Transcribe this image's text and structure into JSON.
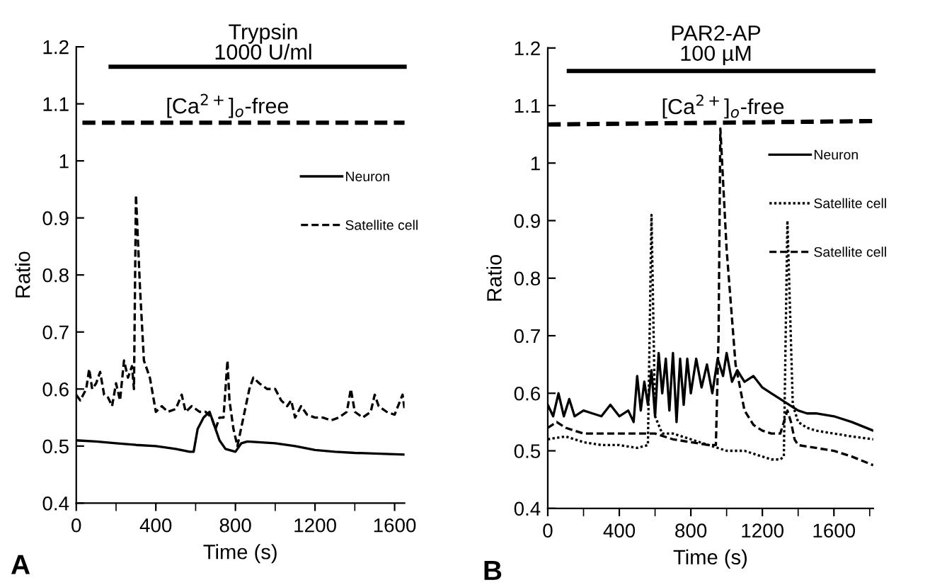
{
  "chart_data": [
    {
      "type": "line",
      "xlabel": "Time (s)",
      "ylabel": "Ratio",
      "legend": "right",
      "grid": false,
      "marker": "none",
      "xlim": [
        0,
        1650
      ],
      "xticks": [
        0,
        {
          "value": 200,
          "label": null
        },
        400,
        {
          "value": 600,
          "label": null
        },
        800,
        {
          "value": 1000,
          "label": null
        },
        1200,
        {
          "value": 1400,
          "label": null
        },
        1600
      ],
      "ylim": [
        0.4,
        1.2
      ],
      "yticks": [
        0.4,
        0.5,
        0.6,
        0.7,
        0.8,
        0.9,
        1,
        1.1,
        1.2
      ],
      "annotations": [
        {
          "text": "Trypsin\n1000 U/ml",
          "x": 940,
          "y": 1.17
        },
        {
          "text": "[Ca$^{2+}$]$_{o}$-free",
          "x": 760,
          "y": 1.075
        },
        "A"
      ],
      "series": [
        {
          "color": "#000000",
          "line_style": "solid",
          "x": [
            173,
            1650
          ],
          "values": [
            1.165,
            1.165
          ]
        },
        {
          "color": "#000000",
          "line_style": "dashed",
          "x": [
            31,
            1650
          ],
          "values": [
            1.067,
            1.067
          ]
        },
        {
          "name": "Neuron",
          "color": "#000000",
          "line_style": "solid",
          "x": [
            0,
            100,
            200,
            300,
            400,
            500,
            570,
            590,
            610,
            640,
            670,
            700,
            720,
            750,
            800,
            830,
            860,
            1000,
            1100,
            1200,
            1300,
            1400,
            1500,
            1650
          ],
          "values": [
            0.51,
            0.508,
            0.505,
            0.502,
            0.5,
            0.495,
            0.49,
            0.49,
            0.53,
            0.55,
            0.56,
            0.53,
            0.51,
            0.495,
            0.49,
            0.505,
            0.508,
            0.505,
            0.5,
            0.493,
            0.49,
            0.488,
            0.487,
            0.485
          ]
        },
        {
          "name": "Satellite cell",
          "color": "#000000",
          "line_style": "dashed",
          "x": [
            0,
            20,
            50,
            65,
            80,
            100,
            120,
            140,
            160,
            180,
            200,
            220,
            240,
            260,
            280,
            290,
            300,
            320,
            340,
            370,
            390,
            400,
            430,
            460,
            500,
            530,
            550,
            580,
            620,
            650,
            680,
            700,
            720,
            740,
            760,
            770,
            790,
            810,
            840,
            870,
            890,
            920,
            960,
            1000,
            1030,
            1060,
            1080,
            1100,
            1130,
            1160,
            1200,
            1240,
            1280,
            1320,
            1360,
            1380,
            1400,
            1440,
            1480,
            1500,
            1520,
            1560,
            1600,
            1640,
            1650
          ],
          "values": [
            0.59,
            0.58,
            0.6,
            0.635,
            0.6,
            0.61,
            0.63,
            0.59,
            0.585,
            0.57,
            0.61,
            0.58,
            0.65,
            0.62,
            0.64,
            0.6,
            0.94,
            0.78,
            0.65,
            0.62,
            0.58,
            0.56,
            0.57,
            0.56,
            0.565,
            0.59,
            0.56,
            0.57,
            0.56,
            0.56,
            0.55,
            0.53,
            0.55,
            0.55,
            0.65,
            0.58,
            0.53,
            0.5,
            0.55,
            0.6,
            0.62,
            0.61,
            0.6,
            0.6,
            0.58,
            0.57,
            0.58,
            0.55,
            0.57,
            0.555,
            0.55,
            0.55,
            0.545,
            0.55,
            0.56,
            0.6,
            0.56,
            0.55,
            0.56,
            0.59,
            0.57,
            0.56,
            0.555,
            0.59,
            0.565
          ]
        }
      ]
    },
    {
      "type": "line",
      "xlabel": "Time (s)",
      "ylabel": "Ratio",
      "legend": "right",
      "grid": false,
      "marker": "none",
      "xlim": [
        0,
        1820
      ],
      "xticks": [
        0,
        {
          "value": 200,
          "label": null
        },
        400,
        {
          "value": 600,
          "label": null
        },
        800,
        {
          "value": 1000,
          "label": null
        },
        1200,
        {
          "value": 1400,
          "label": null
        },
        1600,
        {
          "value": 1800,
          "label": null
        }
      ],
      "ylim": [
        0.4,
        1.2
      ],
      "yticks": [
        0.4,
        0.5,
        0.6,
        0.7,
        0.8,
        0.9,
        1,
        1.1,
        1.2
      ],
      "annotations": [
        {
          "text": "PAR2-AP\n100 µM",
          "x": 940,
          "y": 1.17
        },
        {
          "text": "[Ca$^{2+}$]$_{o}$-free",
          "x": 980,
          "y": 1.077
        },
        "B"
      ],
      "series": [
        {
          "color": "#000000",
          "line_style": "solid",
          "x": [
            118,
            1820
          ],
          "values": [
            1.16,
            1.16
          ]
        },
        {
          "color": "#000000",
          "line_style": "dashed",
          "x": [
            0,
            1820
          ],
          "values": [
            1.067,
            1.073
          ]
        },
        {
          "name": "Neuron",
          "color": "#000000",
          "line_style": "solid",
          "x": [
            0,
            30,
            60,
            90,
            120,
            150,
            200,
            250,
            300,
            350,
            400,
            450,
            480,
            500,
            520,
            540,
            560,
            580,
            600,
            620,
            640,
            660,
            680,
            700,
            720,
            740,
            760,
            780,
            800,
            830,
            860,
            890,
            920,
            950,
            980,
            1000,
            1030,
            1060,
            1100,
            1150,
            1200,
            1250,
            1300,
            1350,
            1400,
            1450,
            1500,
            1600,
            1700,
            1820
          ],
          "values": [
            0.58,
            0.56,
            0.6,
            0.56,
            0.59,
            0.56,
            0.57,
            0.565,
            0.56,
            0.58,
            0.56,
            0.57,
            0.55,
            0.63,
            0.57,
            0.62,
            0.58,
            0.64,
            0.56,
            0.67,
            0.6,
            0.66,
            0.57,
            0.67,
            0.55,
            0.66,
            0.58,
            0.66,
            0.6,
            0.66,
            0.61,
            0.65,
            0.6,
            0.66,
            0.63,
            0.67,
            0.62,
            0.64,
            0.62,
            0.63,
            0.61,
            0.6,
            0.59,
            0.58,
            0.57,
            0.565,
            0.565,
            0.56,
            0.55,
            0.535
          ]
        },
        {
          "name": "Satellite cell",
          "color": "#000000",
          "line_style": "dotted",
          "x": [
            0,
            100,
            200,
            300,
            400,
            500,
            560,
            580,
            600,
            640,
            700,
            800,
            900,
            950,
            1000,
            1050,
            1100,
            1150,
            1200,
            1250,
            1300,
            1320,
            1340,
            1370,
            1400,
            1450,
            1500,
            1600,
            1700,
            1820
          ],
          "values": [
            0.52,
            0.525,
            0.515,
            0.51,
            0.51,
            0.505,
            0.51,
            0.91,
            0.56,
            0.53,
            0.53,
            0.52,
            0.51,
            0.505,
            0.5,
            0.5,
            0.5,
            0.495,
            0.49,
            0.485,
            0.485,
            0.49,
            0.9,
            0.58,
            0.55,
            0.54,
            0.535,
            0.53,
            0.525,
            0.52
          ]
        },
        {
          "name": "Satellite cell",
          "color": "#000000",
          "line_style": "dashed",
          "x": [
            0,
            50,
            100,
            200,
            300,
            400,
            500,
            600,
            700,
            800,
            900,
            940,
            955,
            965,
            1000,
            1050,
            1100,
            1150,
            1200,
            1250,
            1300,
            1340,
            1360,
            1380,
            1400,
            1500,
            1600,
            1700,
            1820
          ],
          "values": [
            0.54,
            0.55,
            0.54,
            0.53,
            0.53,
            0.53,
            0.53,
            0.53,
            0.52,
            0.515,
            0.51,
            0.51,
            0.7,
            1.06,
            0.85,
            0.65,
            0.57,
            0.545,
            0.535,
            0.53,
            0.53,
            0.57,
            0.55,
            0.52,
            0.51,
            0.505,
            0.5,
            0.49,
            0.475
          ]
        }
      ]
    }
  ]
}
